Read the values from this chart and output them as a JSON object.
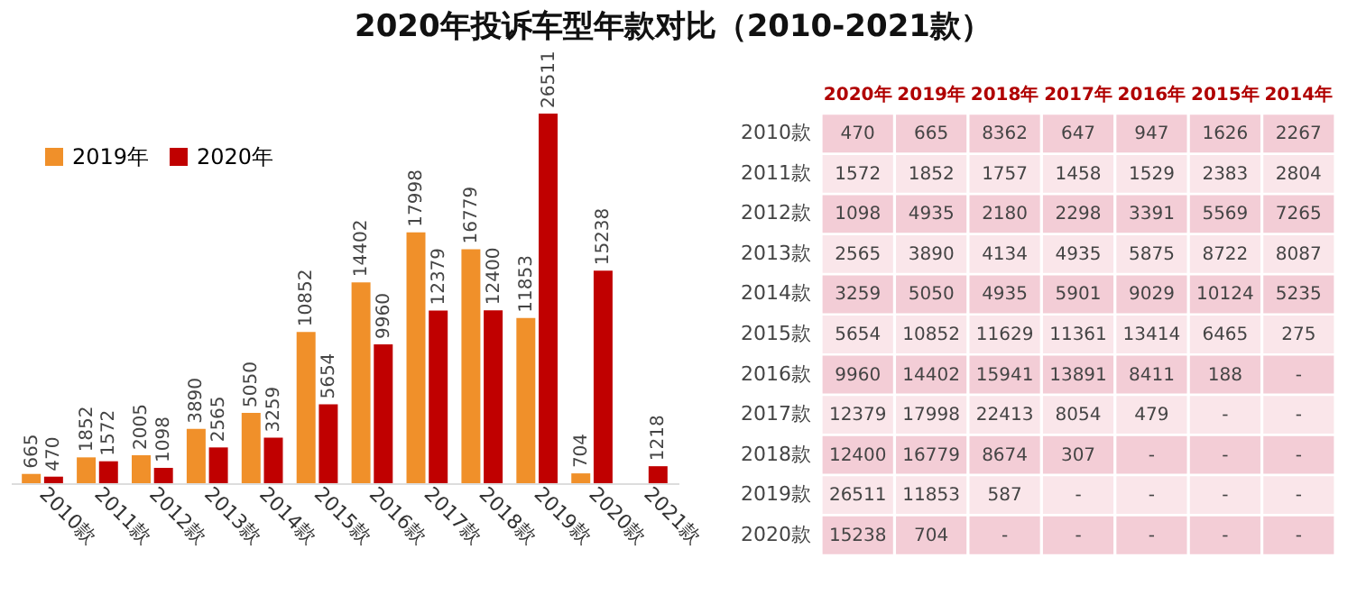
{
  "chart_data": [
    {
      "type": "bar",
      "title": "2020年投诉车型年款对比（2010-2021款）",
      "categories": [
        "2010款",
        "2011款",
        "2012款",
        "2013款",
        "2014款",
        "2015款",
        "2016款",
        "2017款",
        "2018款",
        "2019款",
        "2020款",
        "2021款"
      ],
      "series": [
        {
          "name": "2019年",
          "color": "#f0902a",
          "values": [
            665,
            1852,
            2005,
            3890,
            5050,
            10852,
            14402,
            17998,
            16779,
            11853,
            704,
            null
          ]
        },
        {
          "name": "2020年",
          "color": "#c00000",
          "values": [
            470,
            1572,
            1098,
            2565,
            3259,
            5654,
            9960,
            12379,
            12400,
            26511,
            15238,
            1218
          ]
        }
      ],
      "data_labels": true,
      "legend": "top left"
    },
    {
      "type": "heatmap",
      "categories": [
        "2020年",
        "2019年",
        "2018年",
        "2017年",
        "2016年",
        "2015年",
        "2014年"
      ],
      "y_categories": [
        "2010款",
        "2011款",
        "2012款",
        "2013款",
        "2014款",
        "2015款",
        "2016款",
        "2017款",
        "2018款",
        "2019款",
        "2020款"
      ],
      "cells": [
        [
          470,
          665,
          8362,
          647,
          947,
          1626,
          2267
        ],
        [
          1572,
          1852,
          1757,
          1458,
          1529,
          2383,
          2804
        ],
        [
          1098,
          4935,
          2180,
          2298,
          3391,
          5569,
          7265
        ],
        [
          2565,
          3890,
          4134,
          4935,
          5875,
          8722,
          8087
        ],
        [
          3259,
          5050,
          4935,
          5901,
          9029,
          10124,
          5235
        ],
        [
          5654,
          10852,
          11629,
          11361,
          13414,
          6465,
          275
        ],
        [
          9960,
          14402,
          15941,
          13891,
          8411,
          188,
          null
        ],
        [
          12379,
          17998,
          22413,
          8054,
          479,
          null,
          null
        ],
        [
          12400,
          16779,
          8674,
          307,
          null,
          null,
          null
        ],
        [
          26511,
          11853,
          587,
          null,
          null,
          null,
          null
        ],
        [
          15238,
          704,
          null,
          null,
          null,
          null,
          null
        ]
      ],
      "cell_labels": [
        [
          "470",
          "665",
          "8362",
          "647",
          "947",
          "1626",
          "2267"
        ],
        [
          "1572",
          "1852",
          "1757",
          "1458",
          "1529",
          "2383",
          "2804"
        ],
        [
          "1098",
          "4935",
          "2180",
          "2298",
          "3391",
          "5569",
          "7265"
        ],
        [
          "2565",
          "3890",
          "4134",
          "4935",
          "5875",
          "8722",
          "8087"
        ],
        [
          "3259",
          "5050",
          "4935",
          "5901",
          "9029",
          "10124",
          "5235"
        ],
        [
          "5654",
          "10852",
          "11629",
          "11361",
          "13414",
          "6465",
          "275"
        ],
        [
          "9960",
          "14402",
          "15941",
          "13891",
          "8411",
          "188",
          "-"
        ],
        [
          "12379",
          "17998",
          "22413",
          "8054",
          "479",
          "-",
          "-"
        ],
        [
          "12400",
          "16779",
          "8674",
          "307",
          "-",
          "-",
          "-"
        ],
        [
          "26511",
          "11853",
          "587",
          "-",
          "-",
          "-",
          "-"
        ],
        [
          "15238",
          "704",
          "-",
          "-",
          "-",
          "-",
          "-"
        ]
      ]
    }
  ]
}
